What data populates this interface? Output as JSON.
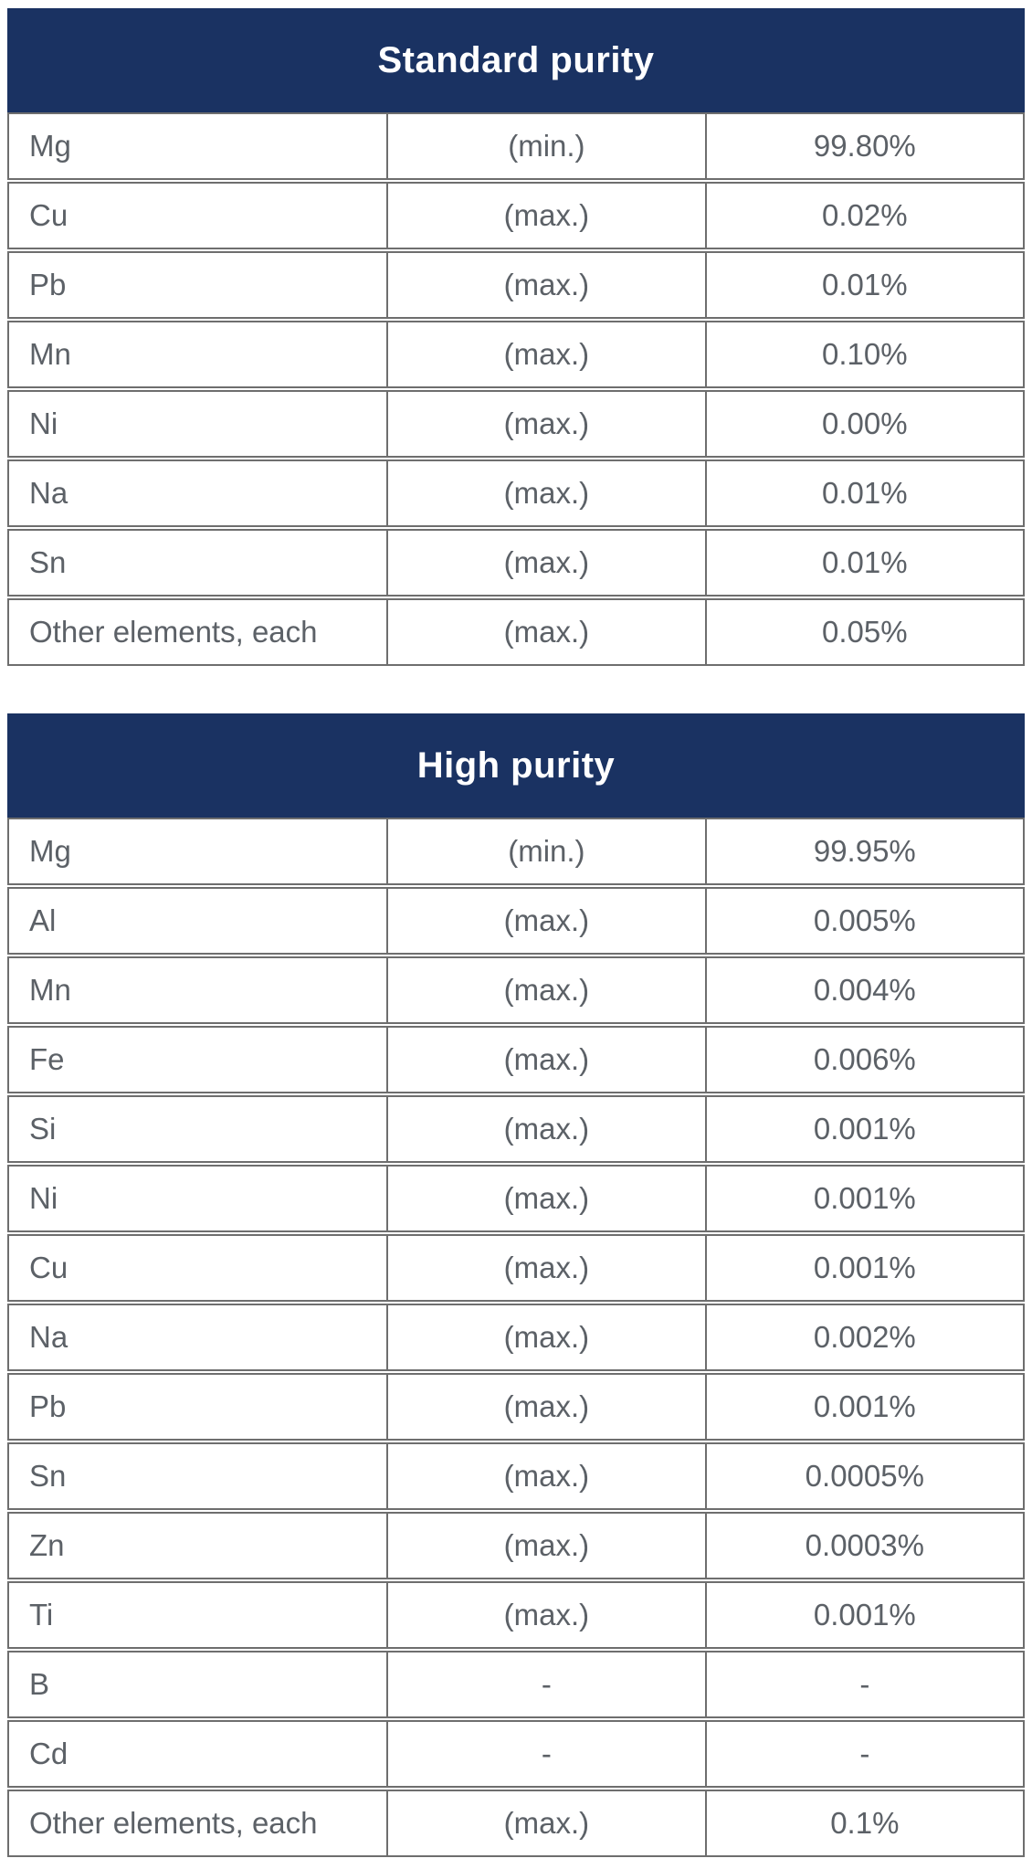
{
  "colors": {
    "header_bg": "#1a3262",
    "header_text": "#ffffff",
    "border": "#6e6e6e",
    "cell_text": "#5c6167",
    "page_bg": "#ffffff"
  },
  "tables": [
    {
      "title": "Standard purity",
      "rows": [
        {
          "element": "Mg",
          "qualifier": "(min.)",
          "value": "99.80%"
        },
        {
          "element": "Cu",
          "qualifier": "(max.)",
          "value": "0.02%"
        },
        {
          "element": "Pb",
          "qualifier": "(max.)",
          "value": "0.01%"
        },
        {
          "element": "Mn",
          "qualifier": "(max.)",
          "value": "0.10%"
        },
        {
          "element": "Ni",
          "qualifier": "(max.)",
          "value": "0.00%"
        },
        {
          "element": "Na",
          "qualifier": "(max.)",
          "value": "0.01%"
        },
        {
          "element": "Sn",
          "qualifier": "(max.)",
          "value": "0.01%"
        },
        {
          "element": "Other elements, each",
          "qualifier": "(max.)",
          "value": "0.05%"
        }
      ]
    },
    {
      "title": "High purity",
      "rows": [
        {
          "element": "Mg",
          "qualifier": "(min.)",
          "value": "99.95%"
        },
        {
          "element": "Al",
          "qualifier": "(max.)",
          "value": "0.005%"
        },
        {
          "element": "Mn",
          "qualifier": "(max.)",
          "value": "0.004%"
        },
        {
          "element": "Fe",
          "qualifier": "(max.)",
          "value": "0.006%"
        },
        {
          "element": "Si",
          "qualifier": "(max.)",
          "value": "0.001%"
        },
        {
          "element": "Ni",
          "qualifier": "(max.)",
          "value": "0.001%"
        },
        {
          "element": "Cu",
          "qualifier": "(max.)",
          "value": "0.001%"
        },
        {
          "element": "Na",
          "qualifier": "(max.)",
          "value": "0.002%"
        },
        {
          "element": "Pb",
          "qualifier": "(max.)",
          "value": "0.001%"
        },
        {
          "element": "Sn",
          "qualifier": "(max.)",
          "value": "0.0005%"
        },
        {
          "element": "Zn",
          "qualifier": "(max.)",
          "value": "0.0003%"
        },
        {
          "element": "Ti",
          "qualifier": "(max.)",
          "value": "0.001%"
        },
        {
          "element": "B",
          "qualifier": "-",
          "value": "-"
        },
        {
          "element": "Cd",
          "qualifier": "-",
          "value": "-"
        },
        {
          "element": "Other elements, each",
          "qualifier": "(max.)",
          "value": "0.1%"
        }
      ]
    }
  ]
}
